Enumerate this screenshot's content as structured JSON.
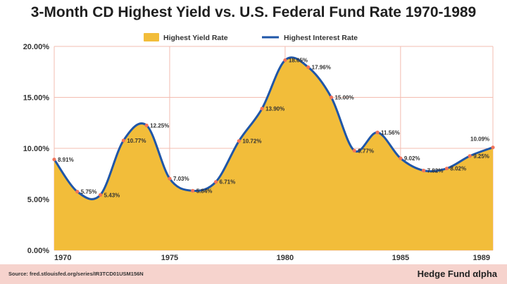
{
  "title": "3-Month CD Highest Yield vs. U.S. Federal Fund Rate 1970-1989",
  "source": "Source: fred.stlouisfed.org/series/IR3TCD01USM156N",
  "brand": "Hedge Fund αlpha",
  "colors": {
    "area": "#f2bd3a",
    "line": "#1f56a8",
    "marker": "#f0735a",
    "grid": "#f3bcb0",
    "footer": "#f6d3cd"
  },
  "chart_data": {
    "type": "area",
    "legend_position": "top",
    "grid": true,
    "ylim": [
      0,
      20
    ],
    "xlim": [
      1970,
      1989
    ],
    "yticks": [
      "0.00%",
      "5.00%",
      "10.00%",
      "15.00%",
      "20.00%"
    ],
    "xticks": [
      "1970",
      "1975",
      "1980",
      "1985",
      "1989"
    ],
    "series": [
      {
        "name": "Highest Yield Rate",
        "kind": "area",
        "x": [
          1970,
          1971,
          1972,
          1973,
          1974,
          1975,
          1976,
          1977,
          1978,
          1979,
          1980,
          1981,
          1982,
          1983,
          1984,
          1985,
          1986,
          1987,
          1988,
          1989
        ],
        "values": [
          8.91,
          5.75,
          5.43,
          10.77,
          12.25,
          7.03,
          5.84,
          6.71,
          10.72,
          13.9,
          18.65,
          17.96,
          15.0,
          9.77,
          11.56,
          9.02,
          7.82,
          8.02,
          9.25,
          10.09
        ]
      },
      {
        "name": "Highest Interest Rate",
        "kind": "line",
        "x": [
          1970,
          1971,
          1972,
          1973,
          1974,
          1975,
          1976,
          1977,
          1978,
          1979,
          1980,
          1981,
          1982,
          1983,
          1984,
          1985,
          1986,
          1987,
          1988,
          1989
        ],
        "values": [
          8.91,
          5.75,
          5.43,
          10.77,
          12.25,
          7.03,
          5.84,
          6.71,
          10.72,
          13.9,
          18.65,
          17.96,
          15.0,
          9.77,
          11.56,
          9.02,
          7.82,
          8.02,
          9.25,
          10.09
        ]
      }
    ],
    "data_labels": [
      "8.91%",
      "5.75%",
      "5.43%",
      "10.77%",
      "12.25%",
      "7.03%",
      "5.84%",
      "6.71%",
      "10.72%",
      "13.90%",
      "18.65%",
      "17.96%",
      "15.00%",
      "9.77%",
      "11.56%",
      "9.02%",
      "7.82%",
      "8.02%",
      "9.25%",
      "10.09%"
    ]
  }
}
